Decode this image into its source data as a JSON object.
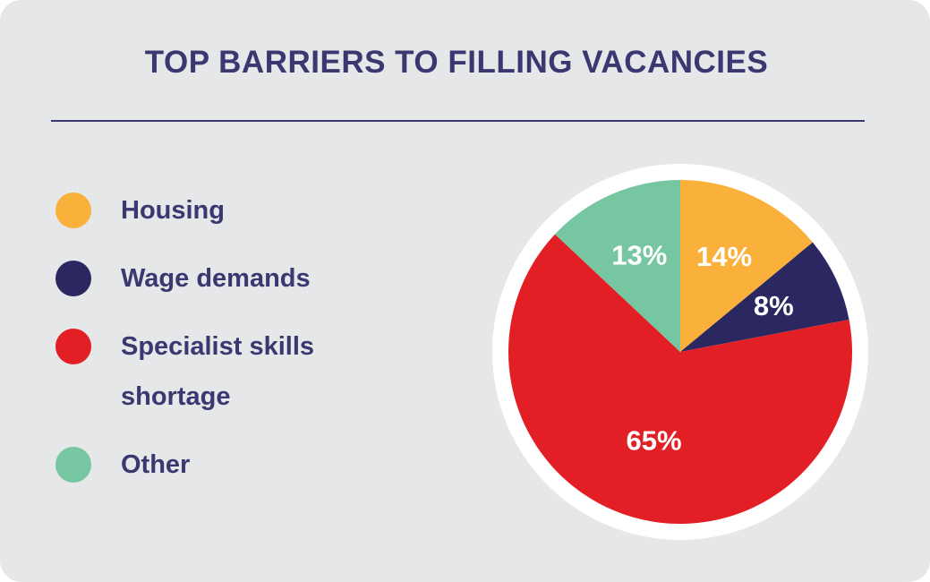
{
  "chart_data": {
    "type": "pie",
    "title": "TOP BARRIERS TO FILLING VACANCIES",
    "categories": [
      "Housing",
      "Wage demands",
      "Specialist skills shortage",
      "Other"
    ],
    "values": [
      14,
      8,
      65,
      13
    ],
    "value_labels": [
      "14%",
      "8%",
      "65%",
      "13%"
    ],
    "colors": [
      "#f9b13b",
      "#2b2761",
      "#e31f26",
      "#76c6a1"
    ]
  }
}
